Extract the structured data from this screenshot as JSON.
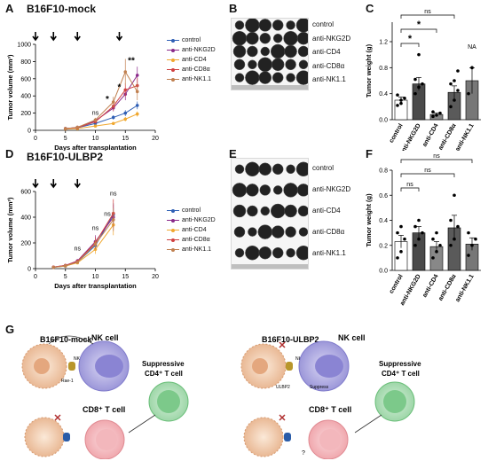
{
  "panels": {
    "A": {
      "letter": "A",
      "title": "B16F10-mock"
    },
    "B": {
      "letter": "B",
      "labels": [
        "control",
        "anti-NKG2D",
        "anti-CD4",
        "anti-CD8α",
        "anti-NK1.1"
      ]
    },
    "C": {
      "letter": "C",
      "annotations": [
        "ns",
        "*",
        "*",
        "NA"
      ]
    },
    "D": {
      "letter": "D",
      "title": "B16F10-ULBP2"
    },
    "E": {
      "letter": "E",
      "labels": [
        "control",
        "anti-NKG2D",
        "anti-CD4",
        "anti-CD8α",
        "anti-NK1.1"
      ]
    },
    "F": {
      "letter": "F",
      "annotations": [
        "ns",
        "ns",
        "ns"
      ]
    },
    "G": {
      "letter": "G",
      "left_title": "B16F10-mock",
      "right_title": "B16F10-ULBP2",
      "nk_cell": "NK cell",
      "suppressive_t_cell": "Suppressive",
      "suppressive_t_cell_2": "CD4⁺ T cell",
      "cd8_t_cell": "CD8⁺ T cell",
      "nkg2d": "NKG2D",
      "rae1": "Rae-1",
      "ulbp2": "ULBP2",
      "suppress": "Suppress",
      "question": "?"
    }
  },
  "colors": {
    "control": "#2f5fb5",
    "anti-NKG2D": "#8a2a8a",
    "anti-CD4": "#f0a830",
    "anti-CD8α": "#d04040",
    "anti-NK1.1": "#c08050"
  },
  "chart_data": [
    {
      "panel": "A",
      "type": "line",
      "xlabel": "Days after transplantation",
      "ylabel": "Tumor volume (mm³)",
      "xlim": [
        0,
        20
      ],
      "ylim": [
        0,
        1000
      ],
      "xticks": [
        0,
        5,
        10,
        15,
        20
      ],
      "yticks": [
        0,
        200,
        400,
        600,
        800,
        1000
      ],
      "arrows_at_x": [
        0,
        3,
        7,
        14
      ],
      "series": [
        {
          "name": "control",
          "x": [
            5,
            7,
            10,
            13,
            15,
            17
          ],
          "y": [
            20,
            30,
            80,
            150,
            200,
            290
          ],
          "err": [
            5,
            8,
            15,
            25,
            35,
            45
          ]
        },
        {
          "name": "anti-NKG2D",
          "x": [
            5,
            7,
            10,
            13,
            15,
            17
          ],
          "y": [
            20,
            35,
            110,
            260,
            420,
            640
          ],
          "err": [
            5,
            8,
            20,
            40,
            70,
            100
          ]
        },
        {
          "name": "anti-CD4",
          "x": [
            5,
            7,
            10,
            13,
            15,
            17
          ],
          "y": [
            15,
            20,
            50,
            80,
            130,
            190
          ],
          "err": [
            4,
            5,
            10,
            15,
            25,
            30
          ]
        },
        {
          "name": "anti-CD8α",
          "x": [
            5,
            7,
            10,
            13,
            15,
            17
          ],
          "y": [
            20,
            30,
            100,
            280,
            470,
            520
          ],
          "err": [
            5,
            8,
            20,
            50,
            80,
            90
          ]
        },
        {
          "name": "anti-NK1.1",
          "x": [
            5,
            7,
            10,
            13,
            15,
            17
          ],
          "y": [
            20,
            35,
            120,
            330,
            680,
            450
          ],
          "err": [
            5,
            8,
            25,
            60,
            150,
            100
          ]
        }
      ],
      "annotations": [
        {
          "text": "ns",
          "x": 10,
          "y": 180
        },
        {
          "text": "*",
          "x": 12,
          "y": 330
        },
        {
          "text": "*",
          "x": 14,
          "y": 470
        },
        {
          "text": "**",
          "x": 16,
          "y": 780
        }
      ]
    },
    {
      "panel": "C",
      "type": "bar",
      "categories": [
        "control",
        "anti-NKG2D",
        "anti-CD4",
        "anti-CD8α",
        "anti-NK1.1"
      ],
      "values": [
        0.3,
        0.55,
        0.08,
        0.42,
        0.6
      ],
      "err": [
        0.05,
        0.1,
        0.02,
        0.1,
        0.2
      ],
      "points": [
        [
          0.22,
          0.3,
          0.33,
          0.38,
          0.25
        ],
        [
          0.4,
          0.5,
          0.55,
          0.62,
          1.0
        ],
        [
          0.05,
          0.07,
          0.1,
          0.12
        ],
        [
          0.2,
          0.3,
          0.45,
          0.55,
          0.6,
          0.75
        ],
        [
          0.4,
          0.8
        ]
      ],
      "ylabel": "Tumor weight (g)",
      "ylim": [
        0,
        1.5
      ],
      "yticks": [
        0.0,
        0.4,
        0.8,
        1.2
      ]
    },
    {
      "panel": "D",
      "type": "line",
      "xlabel": "Days after transplantation",
      "ylabel": "Tumor volume (mm³)",
      "xlim": [
        0,
        20
      ],
      "ylim": [
        0,
        600
      ],
      "xticks": [
        0,
        5,
        10,
        15,
        20
      ],
      "yticks": [
        0,
        200,
        400,
        600
      ],
      "arrows_at_x": [
        0,
        3,
        7
      ],
      "series": [
        {
          "name": "control",
          "x": [
            3,
            5,
            7,
            10,
            13
          ],
          "y": [
            10,
            20,
            50,
            180,
            420
          ],
          "err": [
            3,
            5,
            12,
            40,
            90
          ]
        },
        {
          "name": "anti-NKG2D",
          "x": [
            3,
            5,
            7,
            10,
            13
          ],
          "y": [
            12,
            25,
            60,
            210,
            400
          ],
          "err": [
            3,
            6,
            15,
            50,
            100
          ]
        },
        {
          "name": "anti-CD4",
          "x": [
            3,
            5,
            7,
            10,
            13
          ],
          "y": [
            10,
            20,
            45,
            150,
            340
          ],
          "err": [
            3,
            5,
            10,
            35,
            80
          ]
        },
        {
          "name": "anti-CD8α",
          "x": [
            3,
            5,
            7,
            10,
            13
          ],
          "y": [
            12,
            25,
            55,
            200,
            430
          ],
          "err": [
            3,
            6,
            14,
            45,
            110
          ]
        },
        {
          "name": "anti-NK1.1",
          "x": [
            3,
            5,
            7,
            10,
            13
          ],
          "y": [
            10,
            22,
            50,
            190,
            380
          ],
          "err": [
            3,
            5,
            12,
            40,
            90
          ]
        }
      ],
      "annotations": [
        {
          "text": "ns",
          "x": 7,
          "y": 140
        },
        {
          "text": "ns",
          "x": 10,
          "y": 300
        },
        {
          "text": "ns",
          "x": 12,
          "y": 410
        },
        {
          "text": "ns",
          "x": 13,
          "y": 570
        }
      ]
    },
    {
      "panel": "F",
      "type": "bar",
      "categories": [
        "control",
        "anti-NKG2D",
        "anti-CD4",
        "anti-CD8α",
        "anti-NK1.1"
      ],
      "values": [
        0.23,
        0.3,
        0.19,
        0.34,
        0.21
      ],
      "err": [
        0.05,
        0.05,
        0.04,
        0.1,
        0.05
      ],
      "points": [
        [
          0.1,
          0.15,
          0.25,
          0.3,
          0.35
        ],
        [
          0.2,
          0.25,
          0.3,
          0.35,
          0.4
        ],
        [
          0.1,
          0.15,
          0.2,
          0.25,
          0.3
        ],
        [
          0.2,
          0.25,
          0.35,
          0.4,
          0.6
        ],
        [
          0.12,
          0.2,
          0.25,
          0.3
        ]
      ],
      "ylabel": "Tumor weight (g)",
      "ylim": [
        0,
        0.8
      ],
      "yticks": [
        0.0,
        0.2,
        0.4,
        0.6,
        0.8
      ]
    }
  ]
}
